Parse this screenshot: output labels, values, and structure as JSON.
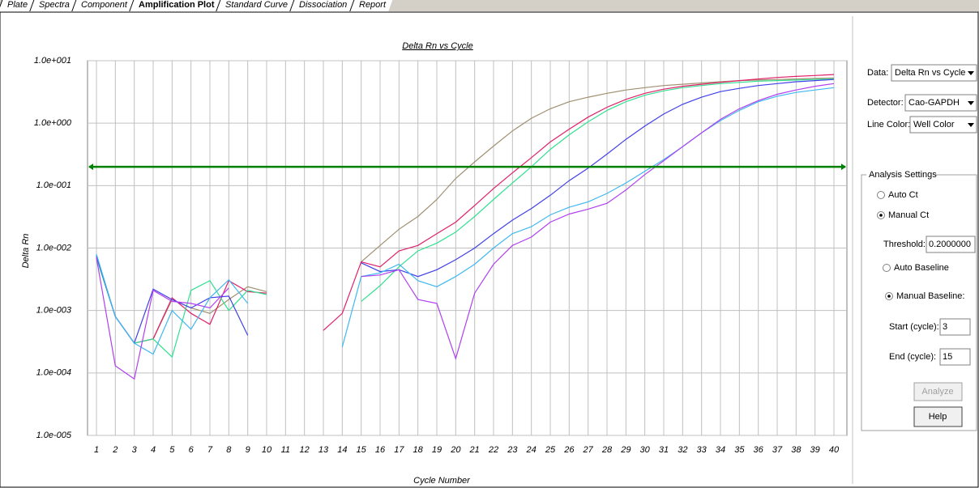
{
  "tabs": [
    "Plate",
    "Spectra",
    "Component",
    "Amplification Plot",
    "Standard Curve",
    "Dissociation",
    "Report"
  ],
  "chart_data": {
    "type": "line",
    "title": "Delta Rn vs Cycle",
    "x_label": "Cycle Number",
    "y_label": "Delta Rn",
    "y_scale": "log",
    "grid": true,
    "ylim": [
      1e-05,
      10
    ],
    "yticks": [
      {
        "value": 10,
        "label": "1.0e+001"
      },
      {
        "value": 1,
        "label": "1.0e+000"
      },
      {
        "value": 0.1,
        "label": "1.0e-001"
      },
      {
        "value": 0.01,
        "label": "1.0e-002"
      },
      {
        "value": 0.001,
        "label": "1.0e-003"
      },
      {
        "value": 0.0001,
        "label": "1.0e-004"
      },
      {
        "value": 1e-05,
        "label": "1.0e-005"
      }
    ],
    "threshold": 0.2,
    "threshold_color": "#008000",
    "categories": [
      "1",
      "2",
      "3",
      "4",
      "5",
      "6",
      "7",
      "8",
      "9",
      "10",
      "11",
      "12",
      "13",
      "14",
      "15",
      "16",
      "17",
      "18",
      "19",
      "20",
      "21",
      "22",
      "23",
      "24",
      "25",
      "26",
      "27",
      "28",
      "29",
      "30",
      "31",
      "32",
      "33",
      "34",
      "35",
      "36",
      "37",
      "38",
      "39",
      "40"
    ],
    "series": [
      {
        "color": "#a09070",
        "values": [
          0.007,
          0.0008,
          0.0003,
          0.00035,
          0.0015,
          0.0011,
          0.0009,
          0.0015,
          0.0024,
          0.002,
          null,
          null,
          null,
          null,
          0.006,
          0.011,
          0.02,
          0.032,
          0.06,
          0.13,
          0.24,
          0.43,
          0.75,
          1.2,
          1.7,
          2.2,
          2.6,
          3.0,
          3.4,
          3.7,
          4.0,
          4.2,
          4.4,
          4.6,
          4.8,
          4.9,
          5.0,
          5.1,
          5.2,
          5.3
        ]
      },
      {
        "color": "#e0206a",
        "values": [
          0.0075,
          0.0008,
          0.0003,
          0.00035,
          0.0016,
          0.0009,
          0.0006,
          0.003,
          0.002,
          0.0019,
          null,
          null,
          0.00048,
          0.0009,
          0.006,
          0.005,
          0.009,
          0.011,
          0.017,
          0.026,
          0.048,
          0.09,
          0.16,
          0.28,
          0.5,
          0.8,
          1.25,
          1.8,
          2.4,
          3.0,
          3.5,
          3.9,
          4.2,
          4.5,
          4.8,
          5.1,
          5.4,
          5.6,
          5.8,
          6.0
        ]
      },
      {
        "color": "#30e090",
        "values": [
          0.007,
          0.0008,
          0.0003,
          0.00035,
          0.00018,
          0.0021,
          0.003,
          0.001,
          0.0021,
          0.0018,
          null,
          null,
          null,
          null,
          0.0014,
          0.0025,
          0.005,
          0.009,
          0.012,
          0.018,
          0.032,
          0.06,
          0.11,
          0.2,
          0.38,
          0.65,
          1.05,
          1.6,
          2.2,
          2.8,
          3.3,
          3.7,
          4.0,
          4.3,
          4.5,
          4.7,
          4.8,
          4.9,
          5.0,
          5.1
        ]
      },
      {
        "color": "#4040e8",
        "values": [
          0.0075,
          0.0008,
          0.0003,
          0.0022,
          0.0015,
          0.0011,
          0.0016,
          0.0017,
          0.0004,
          null,
          null,
          null,
          null,
          null,
          0.0058,
          0.0042,
          0.0045,
          0.0035,
          0.0045,
          0.0065,
          0.01,
          0.017,
          0.028,
          0.043,
          0.07,
          0.12,
          0.19,
          0.32,
          0.55,
          0.9,
          1.4,
          2.0,
          2.6,
          3.2,
          3.6,
          4.0,
          4.3,
          4.6,
          4.8,
          5.0
        ]
      },
      {
        "color": "#40b8f0",
        "values": [
          0.008,
          0.0008,
          0.0003,
          0.0002,
          0.001,
          0.0005,
          0.0016,
          0.0031,
          0.0013,
          null,
          null,
          null,
          null,
          0.00026,
          0.0035,
          0.004,
          0.0055,
          0.003,
          0.0024,
          0.0035,
          0.0055,
          0.01,
          0.017,
          0.022,
          0.034,
          0.045,
          0.055,
          0.075,
          0.11,
          0.17,
          0.26,
          0.42,
          0.7,
          1.1,
          1.6,
          2.2,
          2.7,
          3.1,
          3.4,
          3.7
        ]
      },
      {
        "color": "#b040f0",
        "values": [
          0.007,
          0.00013,
          8e-05,
          0.0021,
          0.0014,
          0.0013,
          0.0011,
          0.0023,
          null,
          null,
          null,
          null,
          null,
          null,
          0.0035,
          0.0037,
          0.0045,
          0.0015,
          0.0013,
          0.00017,
          0.0019,
          0.0055,
          0.011,
          0.015,
          0.026,
          0.035,
          0.042,
          0.052,
          0.085,
          0.15,
          0.25,
          0.42,
          0.7,
          1.15,
          1.7,
          2.3,
          2.9,
          3.4,
          3.9,
          4.3
        ]
      }
    ]
  },
  "controls": {
    "data_label": "Data:",
    "data_value": "Delta Rn vs Cycle",
    "detector_label": "Detector:",
    "detector_value": "Cao-GAPDH",
    "line_color_label": "Line Color:",
    "line_color_value": "Well Color",
    "group_title": "Analysis Settings",
    "auto_ct": "Auto Ct",
    "manual_ct": "Manual Ct",
    "threshold_label": "Threshold:",
    "threshold_value": "0.2000000",
    "auto_baseline": "Auto Baseline",
    "manual_baseline": "Manual Baseline:",
    "start_label": "Start (cycle):",
    "start_value": "3",
    "end_label": "End (cycle):",
    "end_value": "15",
    "analyze": "Analyze",
    "help": "Help"
  }
}
